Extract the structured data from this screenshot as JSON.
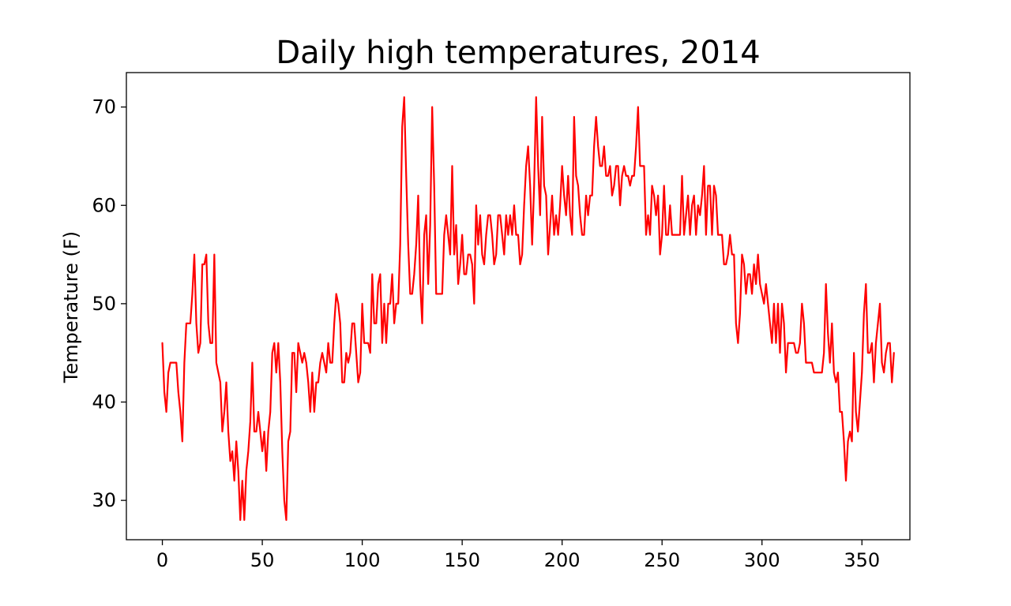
{
  "chart_data": {
    "type": "line",
    "title": "Daily high temperatures, 2014",
    "xlabel": "",
    "ylabel": "Temperature (F)",
    "xlim": [
      -18,
      374
    ],
    "ylim": [
      26,
      73.5
    ],
    "x_ticks": [
      0,
      50,
      100,
      150,
      200,
      250,
      300,
      350
    ],
    "y_ticks": [
      30,
      40,
      50,
      60,
      70
    ],
    "grid": false,
    "legend": "none",
    "line_color": "#ff0000",
    "series": [
      {
        "x_start": 0,
        "x_step": 1,
        "values": [
          46,
          41,
          39,
          43,
          44,
          44,
          44,
          44,
          41,
          39,
          36,
          44,
          48,
          48,
          48,
          51,
          55,
          48,
          45,
          46,
          54,
          54,
          55,
          48,
          46,
          46,
          55,
          44,
          43,
          42,
          37,
          39,
          42,
          37,
          34,
          35,
          32,
          36,
          33,
          28,
          32,
          28,
          33,
          35,
          38,
          44,
          37,
          37,
          39,
          37,
          35,
          37,
          33,
          37,
          39,
          45,
          46,
          43,
          46,
          42,
          35,
          30,
          28,
          36,
          37,
          45,
          45,
          41,
          46,
          45,
          44,
          45,
          44,
          42,
          39,
          43,
          39,
          42,
          42,
          44,
          45,
          44,
          43,
          46,
          44,
          44,
          48,
          51,
          50,
          48,
          42,
          42,
          45,
          44,
          45,
          48,
          48,
          45,
          42,
          43,
          50,
          46,
          46,
          46,
          45,
          53,
          48,
          48,
          52,
          53,
          46,
          50,
          46,
          50,
          50,
          53,
          48,
          50,
          50,
          56,
          68,
          71,
          63,
          56,
          51,
          51,
          53,
          56,
          61,
          52,
          48,
          57,
          59,
          52,
          58,
          70,
          62,
          51,
          51,
          51,
          51,
          57,
          59,
          57,
          55,
          64,
          55,
          58,
          52,
          54,
          57,
          53,
          53,
          55,
          55,
          54,
          50,
          60,
          56,
          59,
          55,
          54,
          57,
          59,
          59,
          57,
          54,
          55,
          59,
          59,
          57,
          55,
          59,
          57,
          59,
          57,
          60,
          57,
          57,
          54,
          55,
          60,
          64,
          66,
          62,
          56,
          62,
          71,
          64,
          59,
          69,
          62,
          61,
          55,
          58,
          61,
          57,
          59,
          57,
          60,
          64,
          61,
          59,
          63,
          59,
          57,
          69,
          63,
          62,
          59,
          57,
          57,
          61,
          59,
          61,
          61,
          66,
          69,
          66,
          64,
          64,
          66,
          63,
          63,
          64,
          61,
          62,
          64,
          64,
          60,
          63,
          64,
          63,
          63,
          62,
          63,
          63,
          66,
          70,
          64,
          64,
          64,
          57,
          59,
          57,
          62,
          61,
          59,
          61,
          55,
          57,
          62,
          57,
          57,
          60,
          57,
          57,
          57,
          57,
          57,
          63,
          57,
          59,
          61,
          57,
          60,
          61,
          57,
          60,
          59,
          61,
          64,
          57,
          62,
          62,
          57,
          62,
          61,
          57,
          57,
          57,
          54,
          54,
          55,
          57,
          55,
          55,
          48,
          46,
          49,
          55,
          54,
          51,
          53,
          53,
          51,
          54,
          52,
          55,
          52,
          51,
          50,
          52,
          50,
          48,
          46,
          50,
          46,
          50,
          45,
          50,
          48,
          43,
          46,
          46,
          46,
          46,
          45,
          45,
          46,
          50,
          48,
          44,
          44,
          44,
          44,
          43,
          43,
          43,
          43,
          43,
          45,
          52,
          47,
          44,
          48,
          43,
          42,
          43,
          39,
          39,
          36,
          32,
          36,
          37,
          36,
          45,
          39,
          37,
          40,
          43,
          49,
          52,
          45,
          45,
          46,
          42,
          46,
          48,
          50,
          44,
          43,
          45,
          46,
          46,
          42,
          45
        ]
      }
    ]
  }
}
